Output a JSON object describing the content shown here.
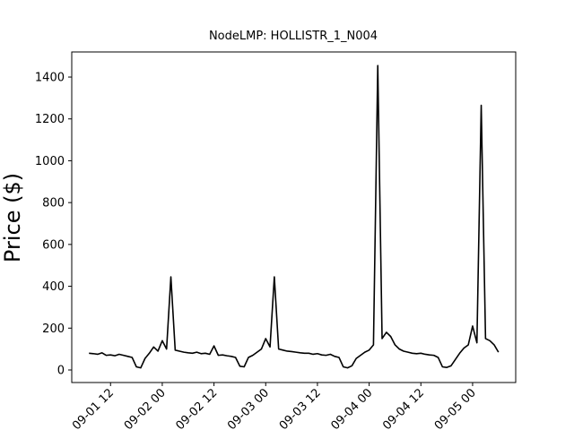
{
  "chart_data": {
    "type": "line",
    "title": "NodeLMP: HOLLISTR_1_N004",
    "y_label": "Price ($)",
    "x": [
      "09-01 07",
      "09-01 08",
      "09-01 09",
      "09-01 10",
      "09-01 11",
      "09-01 12",
      "09-01 13",
      "09-01 14",
      "09-01 15",
      "09-01 16",
      "09-01 17",
      "09-01 18",
      "09-01 19",
      "09-01 20",
      "09-01 21",
      "09-01 22",
      "09-01 23",
      "09-02 00",
      "09-02 01",
      "09-02 02",
      "09-02 03",
      "09-02 04",
      "09-02 05",
      "09-02 06",
      "09-02 07",
      "09-02 08",
      "09-02 09",
      "09-02 10",
      "09-02 11",
      "09-02 12",
      "09-02 13",
      "09-02 14",
      "09-02 15",
      "09-02 16",
      "09-02 17",
      "09-02 18",
      "09-02 19",
      "09-02 20",
      "09-02 21",
      "09-02 22",
      "09-02 23",
      "09-03 00",
      "09-03 01",
      "09-03 02",
      "09-03 03",
      "09-03 04",
      "09-03 05",
      "09-03 06",
      "09-03 07",
      "09-03 08",
      "09-03 09",
      "09-03 10",
      "09-03 11",
      "09-03 12",
      "09-03 13",
      "09-03 14",
      "09-03 15",
      "09-03 16",
      "09-03 17",
      "09-03 18",
      "09-03 19",
      "09-03 20",
      "09-03 21",
      "09-03 22",
      "09-03 23",
      "09-04 00",
      "09-04 01",
      "09-04 02",
      "09-04 03",
      "09-04 04",
      "09-04 05",
      "09-04 06",
      "09-04 07",
      "09-04 08",
      "09-04 09",
      "09-04 10",
      "09-04 11",
      "09-04 12",
      "09-04 13",
      "09-04 14",
      "09-04 15",
      "09-04 16",
      "09-04 17",
      "09-04 18",
      "09-04 19",
      "09-04 20",
      "09-04 21",
      "09-04 22",
      "09-04 23",
      "09-05 00",
      "09-05 01",
      "09-05 02",
      "09-05 03",
      "09-05 04",
      "09-05 05",
      "09-05 06"
    ],
    "series": [
      {
        "color": "#000000",
        "values": [
          80,
          78,
          75,
          82,
          70,
          72,
          68,
          75,
          70,
          65,
          60,
          15,
          10,
          55,
          80,
          110,
          90,
          140,
          100,
          445,
          95,
          90,
          85,
          82,
          80,
          85,
          78,
          80,
          75,
          115,
          70,
          72,
          68,
          65,
          60,
          18,
          15,
          60,
          70,
          85,
          100,
          150,
          110,
          445,
          100,
          95,
          90,
          88,
          85,
          82,
          80,
          80,
          75,
          78,
          72,
          70,
          75,
          65,
          60,
          15,
          10,
          20,
          55,
          70,
          85,
          95,
          120,
          1455,
          150,
          180,
          160,
          120,
          100,
          90,
          85,
          80,
          78,
          80,
          75,
          72,
          70,
          60,
          15,
          12,
          20,
          50,
          80,
          105,
          120,
          210,
          130,
          1265,
          150,
          140,
          120,
          85
        ]
      }
    ],
    "xlim": [
      "09-01 03",
      "09-05 10"
    ],
    "xticks": [
      "09-01 12",
      "09-02 00",
      "09-02 12",
      "09-03 00",
      "09-03 12",
      "09-04 00",
      "09-04 12",
      "09-05 00"
    ],
    "ylim": [
      -60,
      1520
    ],
    "yticks": [
      0,
      200,
      400,
      600,
      800,
      1000,
      1200,
      1400
    ]
  }
}
